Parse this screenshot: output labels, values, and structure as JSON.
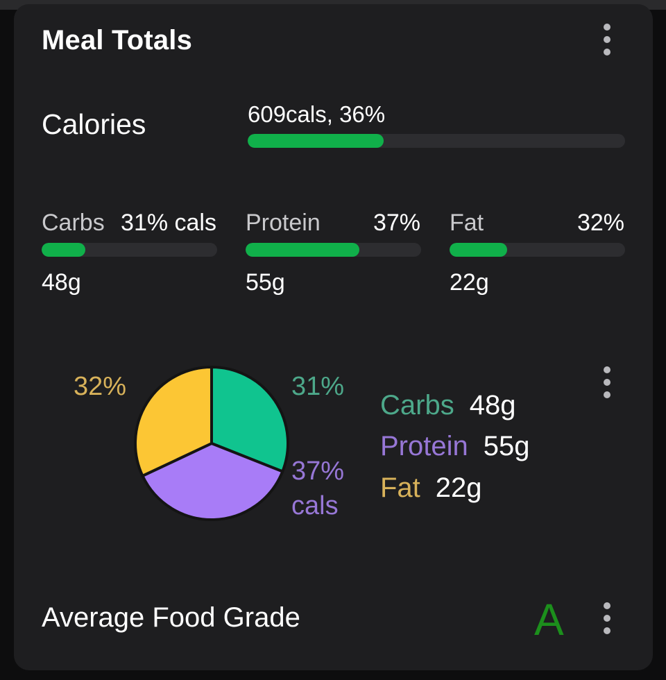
{
  "card": {
    "title": "Meal Totals"
  },
  "calories": {
    "label": "Calories",
    "value_text": "609cals, 36%",
    "percent": 36
  },
  "macros": [
    {
      "name": "Carbs",
      "pct_text": "31% cals",
      "grams": "48g",
      "bar_fraction": 0.25
    },
    {
      "name": "Protein",
      "pct_text": "37%",
      "grams": "55g",
      "bar_fraction": 0.65
    },
    {
      "name": "Fat",
      "pct_text": "32%",
      "grams": "22g",
      "bar_fraction": 0.33
    }
  ],
  "chart_data": {
    "type": "pie",
    "slices": [
      {
        "label": "Carbs",
        "percent": 31,
        "color": "#10c48f"
      },
      {
        "label": "Protein",
        "percent": 37,
        "color": "#a87cf7"
      },
      {
        "label": "Fat",
        "percent": 32,
        "color": "#fcc634"
      }
    ],
    "slice_labels": {
      "fat": "32%",
      "carbs": "31%",
      "protein_line1": "37%",
      "protein_line2": "cals"
    }
  },
  "legend": [
    {
      "name": "Carbs",
      "grams": "48g",
      "color": "#4da88a"
    },
    {
      "name": "Protein",
      "grams": "55g",
      "color": "#9777d6"
    },
    {
      "name": "Fat",
      "grams": "22g",
      "color": "#d8b25a"
    }
  ],
  "grade": {
    "label": "Average Food Grade",
    "value": "A",
    "color": "#1c8f1c"
  },
  "colors": {
    "background": "#1e1e20",
    "bar_fill": "#10b04a",
    "bar_track": "#2d2d30"
  },
  "icons": [
    "more-vert-icon"
  ]
}
